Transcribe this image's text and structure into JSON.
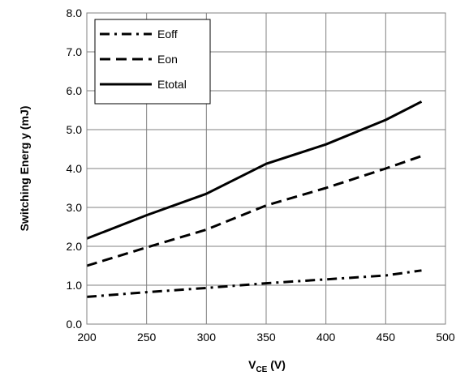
{
  "chart_data": {
    "type": "line",
    "xlabel_main": "V",
    "xlabel_sub": "CE",
    "xlabel_unit": " (V)",
    "ylabel": "Switching Energ y (mJ)",
    "xlim": [
      200,
      500
    ],
    "ylim": [
      0,
      8
    ],
    "xticks": [
      "200",
      "250",
      "300",
      "350",
      "400",
      "450",
      "500"
    ],
    "yticks": [
      "0.0",
      "1.0",
      "2.0",
      "3.0",
      "4.0",
      "5.0",
      "6.0",
      "7.0",
      "8.0"
    ],
    "grid": true,
    "legend_position": "top-left",
    "series": [
      {
        "name": "Eoff",
        "dash": "dashdot",
        "x": [
          200,
          250,
          300,
          350,
          400,
          450,
          480
        ],
        "values": [
          0.7,
          0.82,
          0.93,
          1.05,
          1.15,
          1.25,
          1.38
        ]
      },
      {
        "name": "Eon",
        "dash": "dash",
        "x": [
          200,
          250,
          300,
          350,
          400,
          450,
          480
        ],
        "values": [
          1.5,
          1.97,
          2.43,
          3.05,
          3.5,
          4.0,
          4.32
        ]
      },
      {
        "name": "Etotal",
        "dash": "solid",
        "x": [
          200,
          250,
          300,
          350,
          400,
          450,
          480
        ],
        "values": [
          2.2,
          2.8,
          3.35,
          4.12,
          4.62,
          5.25,
          5.72
        ]
      }
    ]
  }
}
